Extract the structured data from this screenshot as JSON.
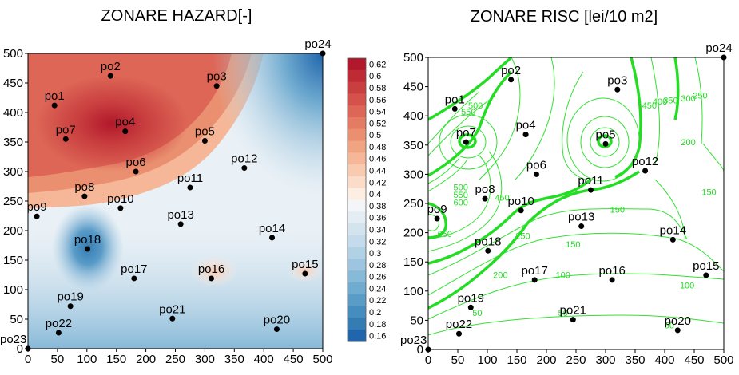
{
  "chart_data": [
    {
      "type": "heatmap",
      "title": "ZONARE HAZARD[-]",
      "xlim": [
        0,
        500
      ],
      "ylim": [
        0,
        500
      ],
      "x_ticks": [
        0,
        50,
        100,
        150,
        200,
        250,
        300,
        350,
        400,
        450,
        500
      ],
      "y_ticks": [
        0,
        50,
        100,
        150,
        200,
        250,
        300,
        350,
        400,
        450,
        500
      ],
      "legend_placement": "right",
      "colorbar_levels": [
        0.62,
        0.6,
        0.58,
        0.56,
        0.54,
        0.52,
        0.5,
        0.48,
        0.46,
        0.44,
        0.42,
        0.4,
        0.38,
        0.36,
        0.34,
        0.32,
        0.3,
        0.28,
        0.26,
        0.24,
        0.22,
        0.2,
        0.18,
        0.16
      ],
      "colorbar_colors": [
        "#b2182b",
        "#be2b34",
        "#c93e3f",
        "#d4524b",
        "#dd6656",
        "#e47b63",
        "#ea9070",
        "#f0a481",
        "#f5b798",
        "#f8cab0",
        "#fbdcc9",
        "#fdeee3",
        "#f3f5f8",
        "#e4edf3",
        "#d4e4ef",
        "#c3dbea",
        "#b1d1e5",
        "#9dc5df",
        "#87b9d8",
        "#70abd0",
        "#5a9cc8",
        "#458cbf",
        "#337cb4",
        "#2166ac"
      ]
    },
    {
      "type": "contour",
      "title": "ZONARE RISC [lei/10 m2]",
      "xlim": [
        0,
        500
      ],
      "ylim": [
        0,
        500
      ],
      "x_ticks": [
        0,
        50,
        100,
        150,
        200,
        250,
        300,
        350,
        400,
        450,
        500
      ],
      "y_ticks": [
        0,
        50,
        100,
        150,
        200,
        250,
        300,
        350,
        400,
        450,
        500
      ],
      "contour_labels": [
        {
          "text": "50",
          "x": 83,
          "y": 63
        },
        {
          "text": "50",
          "x": 228,
          "y": 63
        },
        {
          "text": "50",
          "x": 408,
          "y": 42
        },
        {
          "text": "100",
          "x": 228,
          "y": 128
        },
        {
          "text": "100",
          "x": 438,
          "y": 110
        },
        {
          "text": "150",
          "x": 245,
          "y": 180
        },
        {
          "text": "150",
          "x": 320,
          "y": 240
        },
        {
          "text": "150",
          "x": 475,
          "y": 270
        },
        {
          "text": "200",
          "x": 122,
          "y": 128
        },
        {
          "text": "200",
          "x": 440,
          "y": 355
        },
        {
          "text": "250",
          "x": 160,
          "y": 195
        },
        {
          "text": "250",
          "x": 460,
          "y": 435
        },
        {
          "text": "300",
          "x": 440,
          "y": 430
        },
        {
          "text": "350",
          "x": 410,
          "y": 427
        },
        {
          "text": "400",
          "x": 392,
          "y": 425
        },
        {
          "text": "450",
          "x": 374,
          "y": 418
        },
        {
          "text": "500",
          "x": 55,
          "y": 278
        },
        {
          "text": "550",
          "x": 55,
          "y": 265
        },
        {
          "text": "600",
          "x": 55,
          "y": 252
        },
        {
          "text": "650",
          "x": 28,
          "y": 198
        },
        {
          "text": "450",
          "x": 125,
          "y": 260
        },
        {
          "text": "550",
          "x": 68,
          "y": 407
        },
        {
          "text": "500",
          "x": 80,
          "y": 418
        }
      ]
    }
  ],
  "points": [
    {
      "name": "po1",
      "x": 45,
      "y": 412
    },
    {
      "name": "po2",
      "x": 140,
      "y": 462
    },
    {
      "name": "po3",
      "x": 320,
      "y": 445
    },
    {
      "name": "po4",
      "x": 165,
      "y": 368
    },
    {
      "name": "po5",
      "x": 300,
      "y": 352
    },
    {
      "name": "po6",
      "x": 183,
      "y": 300
    },
    {
      "name": "po7",
      "x": 64,
      "y": 355
    },
    {
      "name": "po8",
      "x": 96,
      "y": 258
    },
    {
      "name": "po9",
      "x": 15,
      "y": 224
    },
    {
      "name": "po10",
      "x": 157,
      "y": 238
    },
    {
      "name": "po11",
      "x": 275,
      "y": 273
    },
    {
      "name": "po12",
      "x": 367,
      "y": 306
    },
    {
      "name": "po13",
      "x": 259,
      "y": 211
    },
    {
      "name": "po14",
      "x": 414,
      "y": 188
    },
    {
      "name": "po15",
      "x": 470,
      "y": 127
    },
    {
      "name": "po16",
      "x": 311,
      "y": 119
    },
    {
      "name": "po17",
      "x": 180,
      "y": 119
    },
    {
      "name": "po18",
      "x": 101,
      "y": 169
    },
    {
      "name": "po19",
      "x": 72,
      "y": 72
    },
    {
      "name": "po20",
      "x": 422,
      "y": 33
    },
    {
      "name": "po21",
      "x": 245,
      "y": 51
    },
    {
      "name": "po22",
      "x": 52,
      "y": 27
    },
    {
      "name": "po23",
      "x": 0,
      "y": 0
    },
    {
      "name": "po24",
      "x": 500,
      "y": 500
    }
  ],
  "colors": {
    "frame": "#000000",
    "risk_contour": "#22dd22",
    "hazard_high": "#b2182b",
    "hazard_low": "#2166ac"
  }
}
